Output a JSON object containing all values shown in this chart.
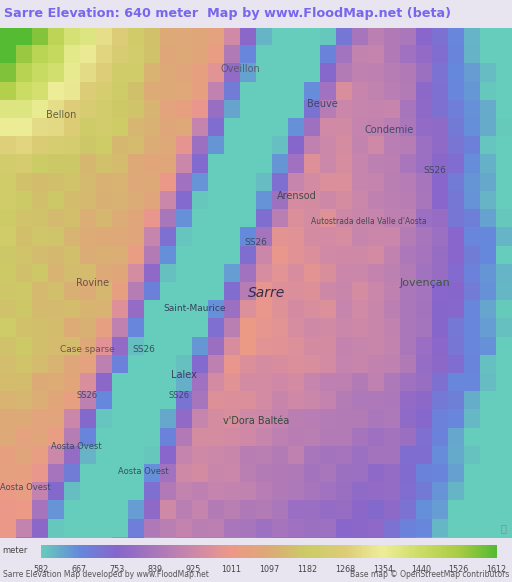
{
  "title": "Sarre Elevation: 640 meter  Map by www.FloodMap.net (beta)",
  "title_color": "#7766ee",
  "title_bg": "#e8e4f0",
  "colorbar_label": "meter",
  "colorbar_values": [
    582,
    667,
    753,
    839,
    925,
    1011,
    1097,
    1182,
    1268,
    1354,
    1440,
    1526,
    1612
  ],
  "footer_left": "Sarre Elevation Map developed by www.FloodMap.net",
  "footer_right": "Base map © OpenStreetMap contributors",
  "elevation_min": 582,
  "elevation_max": 1612,
  "cbar_colors": [
    "#66ccbb",
    "#6688dd",
    "#8866cc",
    "#aa77bb",
    "#cc88aa",
    "#ee9988",
    "#ddaa77",
    "#cccc66",
    "#ddcc77",
    "#eeee99",
    "#ccdd66",
    "#aacc44",
    "#55bb33"
  ],
  "fig_width": 5.12,
  "fig_height": 5.82,
  "dpi": 100,
  "block_size": 16,
  "map_seed": 77
}
